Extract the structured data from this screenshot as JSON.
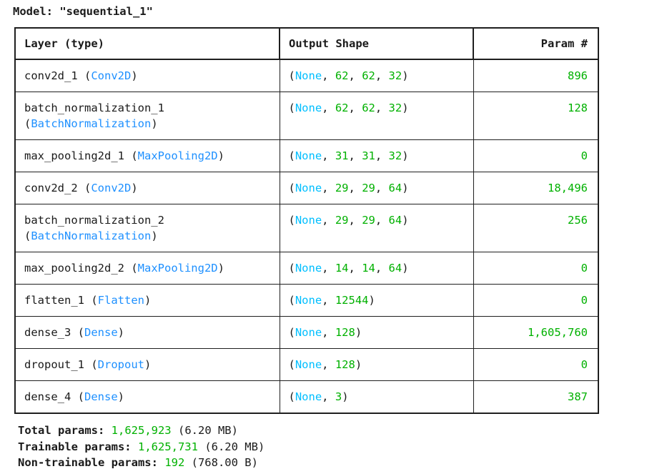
{
  "title": "Model: \"sequential_1\"",
  "colors": {
    "text": "#1a1a1a",
    "layer_class_blue": "#1e90ff",
    "none_cyan": "#00bfff",
    "number_green": "#00b100",
    "border": "#1f1f1f"
  },
  "table": {
    "headers": [
      "Layer (type)",
      "Output Shape",
      "Param #"
    ],
    "rows": [
      {
        "layer_name": "conv2d_1",
        "layer_class": "Conv2D",
        "output_shape": [
          "None",
          "62",
          "62",
          "32"
        ],
        "params": "896"
      },
      {
        "layer_name": "batch_normalization_1",
        "layer_class": "BatchNormalization",
        "output_shape": [
          "None",
          "62",
          "62",
          "32"
        ],
        "params": "128"
      },
      {
        "layer_name": "max_pooling2d_1",
        "layer_class": "MaxPooling2D",
        "output_shape": [
          "None",
          "31",
          "31",
          "32"
        ],
        "params": "0"
      },
      {
        "layer_name": "conv2d_2",
        "layer_class": "Conv2D",
        "output_shape": [
          "None",
          "29",
          "29",
          "64"
        ],
        "params": "18,496"
      },
      {
        "layer_name": "batch_normalization_2",
        "layer_class": "BatchNormalization",
        "output_shape": [
          "None",
          "29",
          "29",
          "64"
        ],
        "params": "256"
      },
      {
        "layer_name": "max_pooling2d_2",
        "layer_class": "MaxPooling2D",
        "output_shape": [
          "None",
          "14",
          "14",
          "64"
        ],
        "params": "0"
      },
      {
        "layer_name": "flatten_1",
        "layer_class": "Flatten",
        "output_shape": [
          "None",
          "12544"
        ],
        "params": "0"
      },
      {
        "layer_name": "dense_3",
        "layer_class": "Dense",
        "output_shape": [
          "None",
          "128"
        ],
        "params": "1,605,760"
      },
      {
        "layer_name": "dropout_1",
        "layer_class": "Dropout",
        "output_shape": [
          "None",
          "128"
        ],
        "params": "0"
      },
      {
        "layer_name": "dense_4",
        "layer_class": "Dense",
        "output_shape": [
          "None",
          "3"
        ],
        "params": "387"
      }
    ]
  },
  "footer": {
    "lines": [
      {
        "label": "Total params: ",
        "value": "1,625,923",
        "suffix": " (6.20 MB)"
      },
      {
        "label": "Trainable params: ",
        "value": "1,625,731",
        "suffix": " (6.20 MB)"
      },
      {
        "label": "Non-trainable params: ",
        "value": "192",
        "suffix": " (768.00 B)"
      }
    ]
  }
}
